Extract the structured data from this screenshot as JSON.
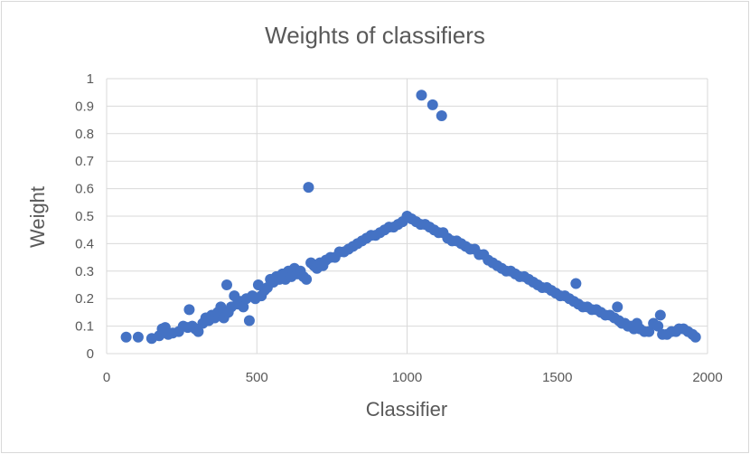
{
  "chart_data": {
    "type": "scatter",
    "title": "Weights of classifiers",
    "xlabel": "Classifier",
    "ylabel": "Weight",
    "xlim": [
      0,
      2000
    ],
    "ylim": [
      0,
      1
    ],
    "x_ticks": [
      "0",
      "500",
      "1000",
      "1500",
      "2000"
    ],
    "y_ticks": [
      "0",
      "0.1",
      "0.2",
      "0.3",
      "0.4",
      "0.5",
      "0.6",
      "0.7",
      "0.8",
      "0.9",
      "1"
    ],
    "grid": true,
    "legend": "none",
    "color": "#4472c4",
    "series": [
      {
        "values": [
          [
            65,
            0.06
          ],
          [
            105,
            0.06
          ],
          [
            150,
            0.055
          ],
          [
            175,
            0.065
          ],
          [
            185,
            0.09
          ],
          [
            195,
            0.095
          ],
          [
            205,
            0.07
          ],
          [
            220,
            0.075
          ],
          [
            240,
            0.08
          ],
          [
            255,
            0.1
          ],
          [
            270,
            0.095
          ],
          [
            275,
            0.16
          ],
          [
            285,
            0.1
          ],
          [
            295,
            0.09
          ],
          [
            305,
            0.08
          ],
          [
            320,
            0.11
          ],
          [
            330,
            0.13
          ],
          [
            340,
            0.12
          ],
          [
            350,
            0.14
          ],
          [
            360,
            0.13
          ],
          [
            370,
            0.15
          ],
          [
            380,
            0.17
          ],
          [
            390,
            0.13
          ],
          [
            400,
            0.25
          ],
          [
            405,
            0.15
          ],
          [
            415,
            0.17
          ],
          [
            425,
            0.21
          ],
          [
            435,
            0.18
          ],
          [
            445,
            0.19
          ],
          [
            455,
            0.17
          ],
          [
            465,
            0.2
          ],
          [
            475,
            0.12
          ],
          [
            485,
            0.21
          ],
          [
            495,
            0.2
          ],
          [
            505,
            0.25
          ],
          [
            515,
            0.21
          ],
          [
            525,
            0.23
          ],
          [
            535,
            0.24
          ],
          [
            545,
            0.27
          ],
          [
            555,
            0.26
          ],
          [
            565,
            0.28
          ],
          [
            575,
            0.27
          ],
          [
            585,
            0.29
          ],
          [
            595,
            0.27
          ],
          [
            605,
            0.3
          ],
          [
            615,
            0.28
          ],
          [
            625,
            0.31
          ],
          [
            635,
            0.29
          ],
          [
            645,
            0.3
          ],
          [
            655,
            0.28
          ],
          [
            665,
            0.27
          ],
          [
            672,
            0.605
          ],
          [
            680,
            0.33
          ],
          [
            690,
            0.32
          ],
          [
            700,
            0.31
          ],
          [
            710,
            0.33
          ],
          [
            720,
            0.32
          ],
          [
            730,
            0.34
          ],
          [
            745,
            0.35
          ],
          [
            760,
            0.35
          ],
          [
            775,
            0.37
          ],
          [
            790,
            0.37
          ],
          [
            805,
            0.38
          ],
          [
            820,
            0.39
          ],
          [
            835,
            0.4
          ],
          [
            850,
            0.41
          ],
          [
            865,
            0.42
          ],
          [
            880,
            0.43
          ],
          [
            895,
            0.43
          ],
          [
            910,
            0.44
          ],
          [
            925,
            0.45
          ],
          [
            940,
            0.46
          ],
          [
            955,
            0.46
          ],
          [
            970,
            0.47
          ],
          [
            985,
            0.48
          ],
          [
            1000,
            0.5
          ],
          [
            1015,
            0.49
          ],
          [
            1030,
            0.48
          ],
          [
            1045,
            0.47
          ],
          [
            1048,
            0.94
          ],
          [
            1060,
            0.47
          ],
          [
            1075,
            0.46
          ],
          [
            1085,
            0.905
          ],
          [
            1090,
            0.45
          ],
          [
            1105,
            0.44
          ],
          [
            1115,
            0.865
          ],
          [
            1120,
            0.44
          ],
          [
            1135,
            0.42
          ],
          [
            1150,
            0.41
          ],
          [
            1165,
            0.41
          ],
          [
            1180,
            0.4
          ],
          [
            1195,
            0.39
          ],
          [
            1210,
            0.38
          ],
          [
            1225,
            0.38
          ],
          [
            1240,
            0.36
          ],
          [
            1255,
            0.36
          ],
          [
            1270,
            0.34
          ],
          [
            1285,
            0.33
          ],
          [
            1300,
            0.32
          ],
          [
            1315,
            0.31
          ],
          [
            1330,
            0.3
          ],
          [
            1345,
            0.3
          ],
          [
            1360,
            0.29
          ],
          [
            1375,
            0.28
          ],
          [
            1390,
            0.28
          ],
          [
            1405,
            0.27
          ],
          [
            1420,
            0.26
          ],
          [
            1435,
            0.25
          ],
          [
            1450,
            0.24
          ],
          [
            1465,
            0.24
          ],
          [
            1480,
            0.23
          ],
          [
            1495,
            0.22
          ],
          [
            1510,
            0.21
          ],
          [
            1525,
            0.21
          ],
          [
            1540,
            0.2
          ],
          [
            1555,
            0.19
          ],
          [
            1562,
            0.255
          ],
          [
            1570,
            0.18
          ],
          [
            1585,
            0.17
          ],
          [
            1600,
            0.17
          ],
          [
            1615,
            0.16
          ],
          [
            1630,
            0.16
          ],
          [
            1645,
            0.15
          ],
          [
            1660,
            0.14
          ],
          [
            1675,
            0.14
          ],
          [
            1690,
            0.13
          ],
          [
            1700,
            0.17
          ],
          [
            1705,
            0.12
          ],
          [
            1715,
            0.11
          ],
          [
            1725,
            0.11
          ],
          [
            1735,
            0.1
          ],
          [
            1745,
            0.1
          ],
          [
            1755,
            0.09
          ],
          [
            1765,
            0.11
          ],
          [
            1775,
            0.09
          ],
          [
            1790,
            0.08
          ],
          [
            1805,
            0.08
          ],
          [
            1820,
            0.11
          ],
          [
            1835,
            0.1
          ],
          [
            1843,
            0.14
          ],
          [
            1850,
            0.07
          ],
          [
            1865,
            0.07
          ],
          [
            1880,
            0.08
          ],
          [
            1895,
            0.08
          ],
          [
            1905,
            0.09
          ],
          [
            1920,
            0.09
          ],
          [
            1935,
            0.08
          ],
          [
            1950,
            0.07
          ],
          [
            1960,
            0.06
          ]
        ]
      }
    ]
  }
}
